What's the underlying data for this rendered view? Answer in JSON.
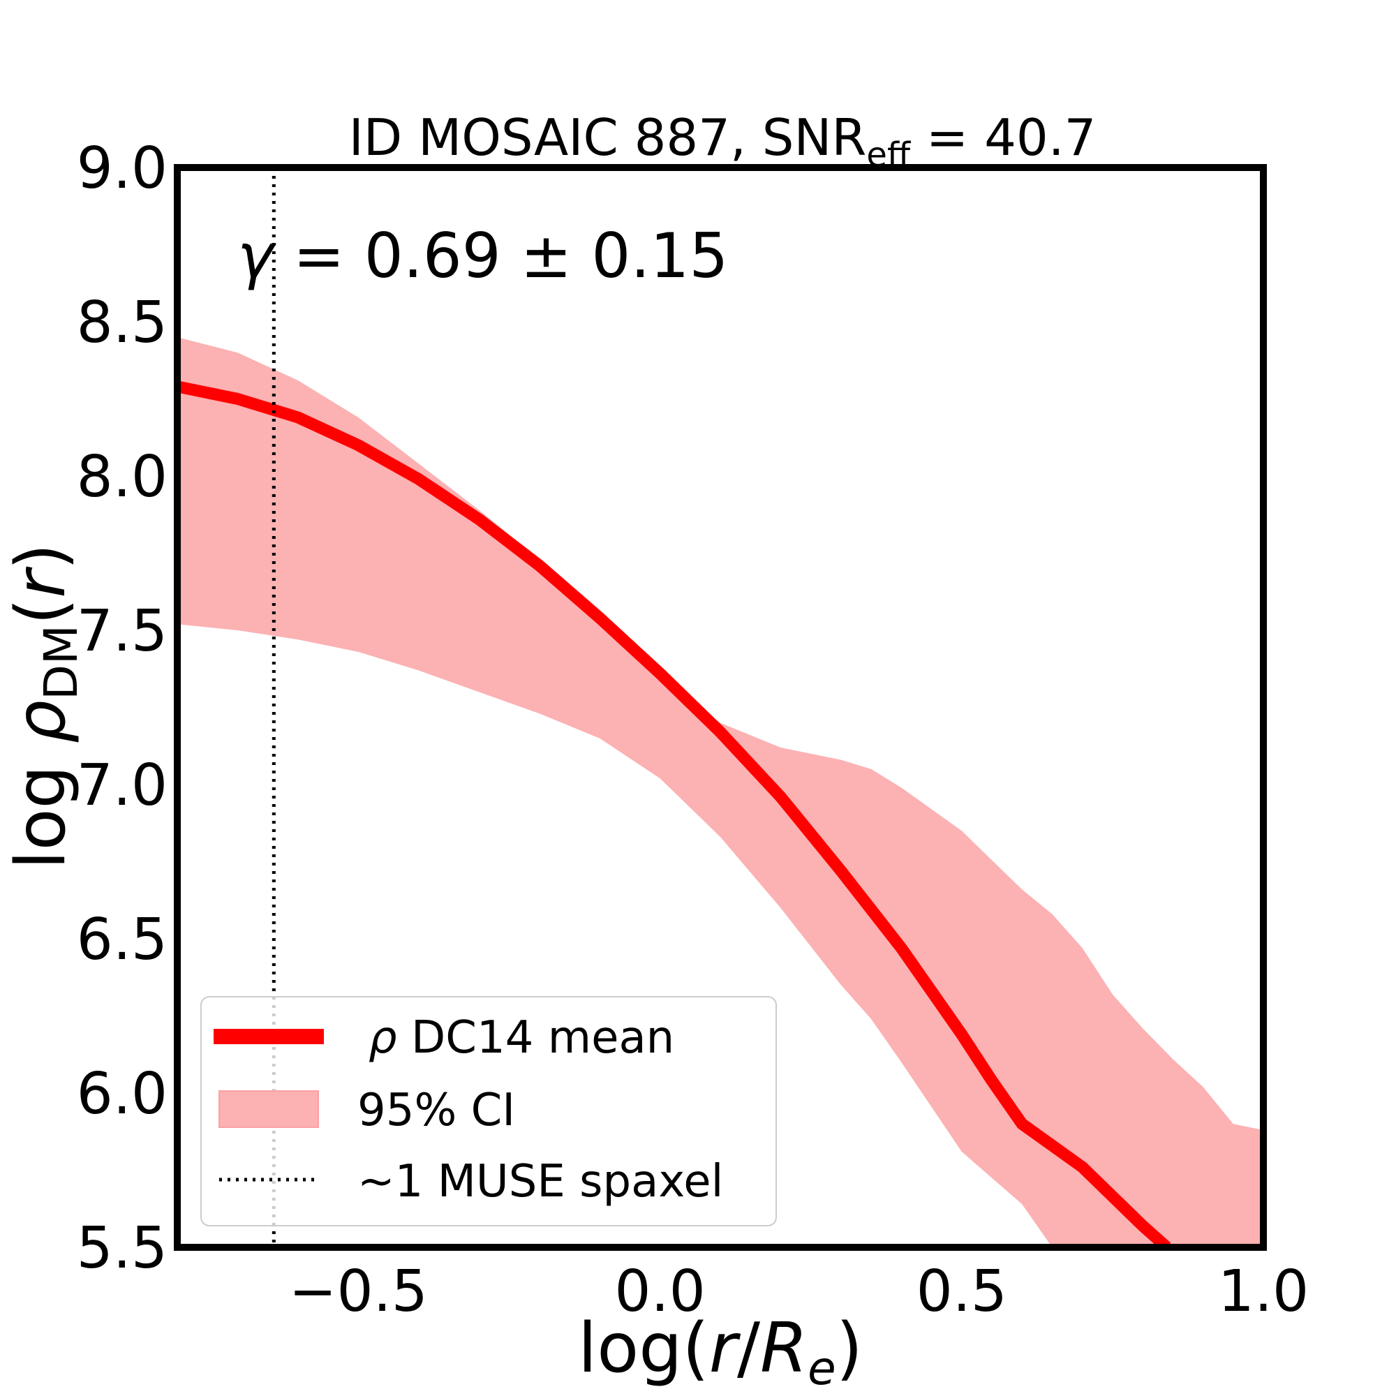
{
  "chart_data": {
    "type": "line",
    "title": {
      "prefix": "ID MOSAIC 887, SNR",
      "sub": "eff",
      "suffix": " = 40.7"
    },
    "xlabel": {
      "pre": "log(",
      "r": "r",
      "slash": "/",
      "R": "R",
      "sub": "e",
      "post": ")"
    },
    "ylabel": {
      "log": "log ",
      "rho": "ρ",
      "sub": "DM",
      "open": "(",
      "r": "r",
      "close": ")"
    },
    "xlim": [
      -0.8,
      1.0
    ],
    "ylim": [
      5.5,
      9.0
    ],
    "xticks": [
      -0.5,
      0.0,
      0.5,
      1.0
    ],
    "xtick_labels": [
      "−0.5",
      "0.0",
      "0.5",
      "1.0"
    ],
    "yticks": [
      5.5,
      6.0,
      6.5,
      7.0,
      7.5,
      8.0,
      8.5,
      9.0
    ],
    "ytick_labels": [
      "5.5",
      "6.0",
      "6.5",
      "7.0",
      "7.5",
      "8.0",
      "8.5",
      "9.0"
    ],
    "annotation": {
      "gamma": "γ",
      "text": " = 0.69 ± 0.15"
    },
    "vline": {
      "x": -0.64,
      "label": "~1 MUSE spaxel"
    },
    "series": [
      {
        "name": "mean",
        "color": "#ff0000",
        "x": [
          -0.8,
          -0.7,
          -0.6,
          -0.5,
          -0.4,
          -0.3,
          -0.2,
          -0.1,
          0.0,
          0.1,
          0.2,
          0.3,
          0.4,
          0.5,
          0.55,
          0.6,
          0.7,
          0.8,
          0.84
        ],
        "y": [
          8.29,
          8.25,
          8.19,
          8.1,
          7.99,
          7.86,
          7.71,
          7.54,
          7.36,
          7.17,
          6.96,
          6.72,
          6.47,
          6.19,
          6.04,
          5.9,
          5.76,
          5.57,
          5.5
        ]
      }
    ],
    "ci": {
      "name": "95% CI",
      "color": "#fcb1b3",
      "x": [
        -0.8,
        -0.7,
        -0.6,
        -0.5,
        -0.4,
        -0.3,
        -0.2,
        -0.1,
        0.0,
        0.1,
        0.2,
        0.3,
        0.35,
        0.4,
        0.5,
        0.6,
        0.65,
        0.7,
        0.75,
        0.8,
        0.85,
        0.9,
        0.95,
        1.0
      ],
      "upper": [
        8.45,
        8.4,
        8.31,
        8.19,
        8.04,
        7.89,
        7.73,
        7.55,
        7.35,
        7.2,
        7.12,
        7.08,
        7.05,
        6.99,
        6.85,
        6.66,
        6.58,
        6.47,
        6.32,
        6.21,
        6.11,
        6.02,
        5.9,
        5.88
      ],
      "lower": [
        7.52,
        7.5,
        7.47,
        7.43,
        7.37,
        7.3,
        7.23,
        7.15,
        7.02,
        6.83,
        6.6,
        6.35,
        6.24,
        6.1,
        5.81,
        5.64,
        5.5,
        5.5,
        5.5,
        5.5,
        5.5,
        5.5,
        5.5,
        5.5
      ]
    },
    "legend": {
      "position": "lower-left",
      "entries": [
        {
          "rho": "ρ",
          "label": " DC14 mean"
        },
        {
          "label": "95% CI"
        },
        {
          "label": "~1 MUSE spaxel"
        }
      ]
    }
  }
}
